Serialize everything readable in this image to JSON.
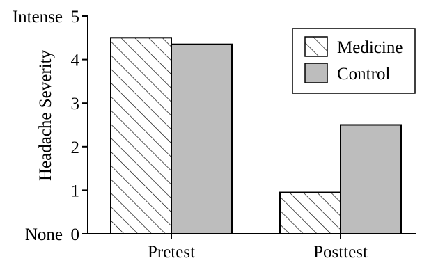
{
  "chart_data": {
    "type": "bar",
    "title": "",
    "xlabel": "",
    "ylabel": "Headache Severity",
    "ylim": [
      0,
      5
    ],
    "yticks": [
      0,
      1,
      2,
      3,
      4,
      5
    ],
    "ytick_words": {
      "low": "None",
      "high": "Intense"
    },
    "categories": [
      "Pretest",
      "Posttest"
    ],
    "series": [
      {
        "name": "Medicine",
        "values": [
          4.5,
          0.95
        ],
        "fill": "hatched",
        "color": "#ffffff"
      },
      {
        "name": "Control",
        "values": [
          4.35,
          2.5
        ],
        "fill": "solid",
        "color": "#bdbdbd"
      }
    ],
    "grid": false,
    "legend_position": "top-right"
  }
}
